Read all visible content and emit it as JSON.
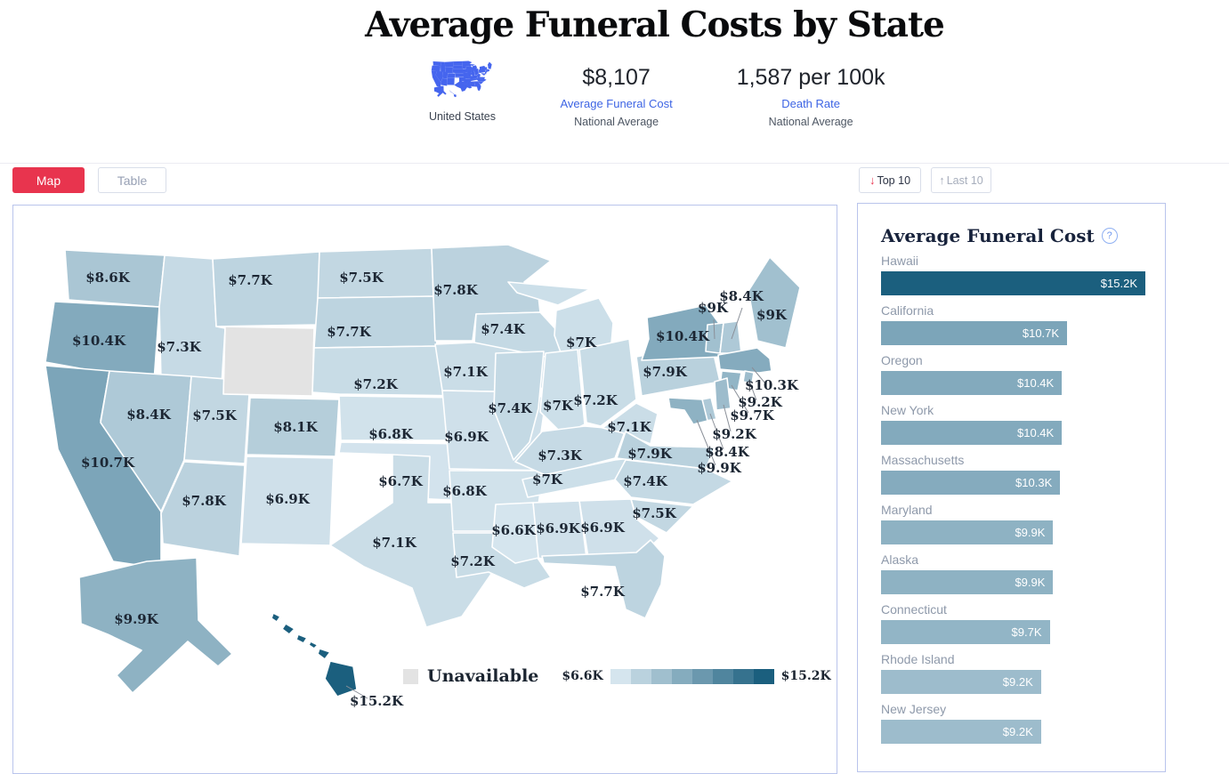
{
  "header": {
    "title": "Average Funeral Costs by State",
    "country_label": "United States",
    "stats": [
      {
        "value": "$8,107",
        "label": "Average Funeral Cost",
        "sublabel": "National Average"
      },
      {
        "value": "1,587 per 100k",
        "label": "Death Rate",
        "sublabel": "National Average"
      }
    ]
  },
  "toolbar": {
    "map_tab": "Map",
    "table_tab": "Table",
    "top10_label": "Top 10",
    "last10_label": "Last 10",
    "top10_icon": "↓",
    "last10_icon": "↑"
  },
  "legend": {
    "unavailable_label": "Unavailable",
    "min_label": "$6.6K",
    "max_label": "$15.2K"
  },
  "sidebar": {
    "title": "Average Funeral Cost",
    "help_icon": "?"
  },
  "colors": {
    "accent_red": "#e8344e",
    "link_blue": "#3d64e4",
    "icon_blue": "#4565ee",
    "scale_light": "#d5e5ee",
    "scale_dark": "#1b5f7e",
    "unavailable_gray": "#e3e3e3",
    "panel_border": "#b9c4ec"
  },
  "chart_data": [
    {
      "type": "heatmap",
      "subtype": "us-choropleth",
      "title": "Average Funeral Costs by State",
      "unit": "USD thousands",
      "range": [
        6.6,
        15.2
      ],
      "unavailable_states": [
        "Wyoming"
      ],
      "states": [
        {
          "abbr": "WA",
          "name": "Washington",
          "value": 8.6,
          "display": "$8.6K"
        },
        {
          "abbr": "OR",
          "name": "Oregon",
          "value": 10.4,
          "display": "$10.4K"
        },
        {
          "abbr": "CA",
          "name": "California",
          "value": 10.7,
          "display": "$10.7K"
        },
        {
          "abbr": "ID",
          "name": "Idaho",
          "value": 7.3,
          "display": "$7.3K"
        },
        {
          "abbr": "NV",
          "name": "Nevada",
          "value": 8.4,
          "display": "$8.4K"
        },
        {
          "abbr": "UT",
          "name": "Utah",
          "value": 7.5,
          "display": "$7.5K"
        },
        {
          "abbr": "AZ",
          "name": "Arizona",
          "value": 7.8,
          "display": "$7.8K"
        },
        {
          "abbr": "MT",
          "name": "Montana",
          "value": 7.7,
          "display": "$7.7K"
        },
        {
          "abbr": "WY",
          "name": "Wyoming",
          "value": null,
          "display": ""
        },
        {
          "abbr": "CO",
          "name": "Colorado",
          "value": 8.1,
          "display": "$8.1K"
        },
        {
          "abbr": "NM",
          "name": "New Mexico",
          "value": 6.9,
          "display": "$6.9K"
        },
        {
          "abbr": "ND",
          "name": "North Dakota",
          "value": 7.5,
          "display": "$7.5K"
        },
        {
          "abbr": "SD",
          "name": "South Dakota",
          "value": 7.7,
          "display": "$7.7K"
        },
        {
          "abbr": "NE",
          "name": "Nebraska",
          "value": 7.2,
          "display": "$7.2K"
        },
        {
          "abbr": "KS",
          "name": "Kansas",
          "value": 6.8,
          "display": "$6.8K"
        },
        {
          "abbr": "OK",
          "name": "Oklahoma",
          "value": 6.7,
          "display": "$6.7K"
        },
        {
          "abbr": "TX",
          "name": "Texas",
          "value": 7.1,
          "display": "$7.1K"
        },
        {
          "abbr": "MN",
          "name": "Minnesota",
          "value": 7.8,
          "display": "$7.8K"
        },
        {
          "abbr": "IA",
          "name": "Iowa",
          "value": 7.1,
          "display": "$7.1K"
        },
        {
          "abbr": "MO",
          "name": "Missouri",
          "value": 6.9,
          "display": "$6.9K"
        },
        {
          "abbr": "AR",
          "name": "Arkansas",
          "value": 6.8,
          "display": "$6.8K"
        },
        {
          "abbr": "LA",
          "name": "Louisiana",
          "value": 7.2,
          "display": "$7.2K"
        },
        {
          "abbr": "WI",
          "name": "Wisconsin",
          "value": 7.4,
          "display": "$7.4K"
        },
        {
          "abbr": "MI",
          "name": "Michigan",
          "value": 7.0,
          "display": "$7K"
        },
        {
          "abbr": "IL",
          "name": "Illinois",
          "value": 7.4,
          "display": "$7.4K"
        },
        {
          "abbr": "IN",
          "name": "Indiana",
          "value": 7.0,
          "display": "$7K"
        },
        {
          "abbr": "OH",
          "name": "Ohio",
          "value": 7.2,
          "display": "$7.2K"
        },
        {
          "abbr": "KY",
          "name": "Kentucky",
          "value": 7.3,
          "display": "$7.3K"
        },
        {
          "abbr": "TN",
          "name": "Tennessee",
          "value": 7.0,
          "display": "$7K"
        },
        {
          "abbr": "WV",
          "name": "West Virginia",
          "value": 7.1,
          "display": "$7.1K"
        },
        {
          "abbr": "VA",
          "name": "Virginia",
          "value": 7.9,
          "display": "$7.9K"
        },
        {
          "abbr": "NC",
          "name": "North Carolina",
          "value": 7.4,
          "display": "$7.4K"
        },
        {
          "abbr": "SC",
          "name": "South Carolina",
          "value": 7.5,
          "display": "$7.5K"
        },
        {
          "abbr": "GA",
          "name": "Georgia",
          "value": 6.9,
          "display": "$6.9K"
        },
        {
          "abbr": "AL",
          "name": "Alabama",
          "value": 6.9,
          "display": "$6.9K"
        },
        {
          "abbr": "MS",
          "name": "Mississippi",
          "value": 6.6,
          "display": "$6.6K"
        },
        {
          "abbr": "FL",
          "name": "Florida",
          "value": 7.7,
          "display": "$7.7K"
        },
        {
          "abbr": "PA",
          "name": "Pennsylvania",
          "value": 7.9,
          "display": "$7.9K"
        },
        {
          "abbr": "NY",
          "name": "New York",
          "value": 10.4,
          "display": "$10.4K"
        },
        {
          "abbr": "ME",
          "name": "Maine",
          "value": 9.0,
          "display": "$9K"
        },
        {
          "abbr": "VT",
          "name": "Vermont",
          "value": 9.0,
          "display": "$9K"
        },
        {
          "abbr": "NH",
          "name": "New Hampshire",
          "value": 8.4,
          "display": "$8.4K"
        },
        {
          "abbr": "MA",
          "name": "Massachusetts",
          "value": 10.3,
          "display": "$10.3K"
        },
        {
          "abbr": "RI",
          "name": "Rhode Island",
          "value": 9.2,
          "display": "$9.2K"
        },
        {
          "abbr": "CT",
          "name": "Connecticut",
          "value": 9.7,
          "display": "$9.7K"
        },
        {
          "abbr": "NJ",
          "name": "New Jersey",
          "value": 9.2,
          "display": "$9.2K"
        },
        {
          "abbr": "DE",
          "name": "Delaware",
          "value": 8.4,
          "display": "$8.4K"
        },
        {
          "abbr": "MD",
          "name": "Maryland",
          "value": 9.9,
          "display": "$9.9K"
        },
        {
          "abbr": "AK",
          "name": "Alaska",
          "value": 9.9,
          "display": "$9.9K"
        },
        {
          "abbr": "HI",
          "name": "Hawaii",
          "value": 15.2,
          "display": "$15.2K"
        }
      ]
    },
    {
      "type": "bar",
      "orientation": "horizontal",
      "title": "Average Funeral Cost",
      "xlim": [
        0,
        15.2
      ],
      "categories": [
        "Hawaii",
        "California",
        "Oregon",
        "New York",
        "Massachusetts",
        "Maryland",
        "Alaska",
        "Connecticut",
        "Rhode Island",
        "New Jersey"
      ],
      "values": [
        15.2,
        10.7,
        10.4,
        10.4,
        10.3,
        9.9,
        9.9,
        9.7,
        9.2,
        9.2
      ],
      "value_labels": [
        "$15.2K",
        "$10.7K",
        "$10.4K",
        "$10.4K",
        "$10.3K",
        "$9.9K",
        "$9.9K",
        "$9.7K",
        "$9.2K",
        "$9.2K"
      ]
    }
  ]
}
